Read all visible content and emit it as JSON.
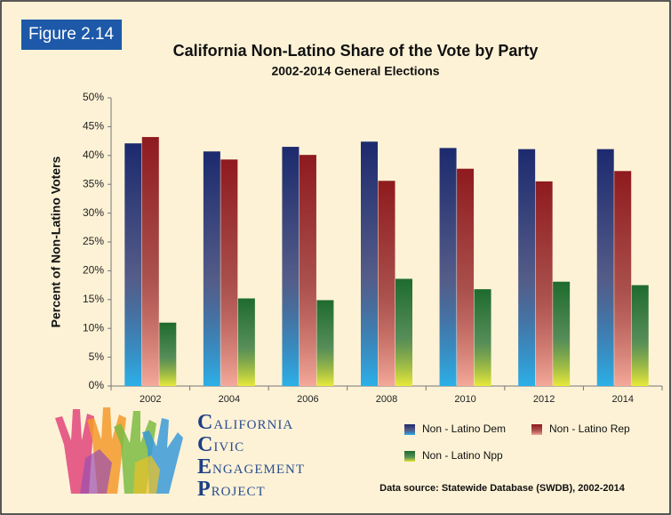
{
  "figure_label": "Figure 2.14",
  "chart_data": {
    "type": "bar",
    "title": "California Non-Latino Share of the Vote by Party",
    "subtitle": "2002-2014 General Elections",
    "y_label": "Percent of Non-Latino Voters",
    "categories": [
      "2002",
      "2004",
      "2006",
      "2008",
      "2010",
      "2012",
      "2014"
    ],
    "series": [
      {
        "name": "Non - Latino Dem",
        "color": "#1c2a6e",
        "values": [
          42.1,
          40.7,
          41.5,
          42.4,
          41.3,
          41.1,
          41.1
        ]
      },
      {
        "name": "Non - Latino Rep",
        "color": "#8e1a1e",
        "values": [
          43.2,
          39.3,
          40.1,
          35.6,
          37.7,
          35.5,
          37.3
        ]
      },
      {
        "name": "Non - Latino Npp",
        "color": "#1e6b2e",
        "values": [
          11.0,
          15.2,
          14.9,
          18.6,
          16.8,
          18.1,
          17.5
        ]
      }
    ],
    "ylim": [
      0,
      50
    ],
    "yticks": [
      {
        "value": 0,
        "label": "0%"
      },
      {
        "value": 5,
        "label": "5%"
      },
      {
        "value": 10,
        "label": "10%"
      },
      {
        "value": 15,
        "label": "15%"
      },
      {
        "value": 20,
        "label": "20%"
      },
      {
        "value": 25,
        "label": "25%"
      },
      {
        "value": 30,
        "label": "30%"
      },
      {
        "value": 35,
        "label": "35%"
      },
      {
        "value": 40,
        "label": "40%"
      },
      {
        "value": 45,
        "label": "45%"
      },
      {
        "value": 50,
        "label": "50%"
      }
    ],
    "grid": false,
    "legend": "bottom-right",
    "source": "Data source: Statewide Database (SWDB), 2002-2014"
  },
  "logo": {
    "lines": [
      "California",
      "Civic",
      "Engagement",
      "Project"
    ]
  }
}
